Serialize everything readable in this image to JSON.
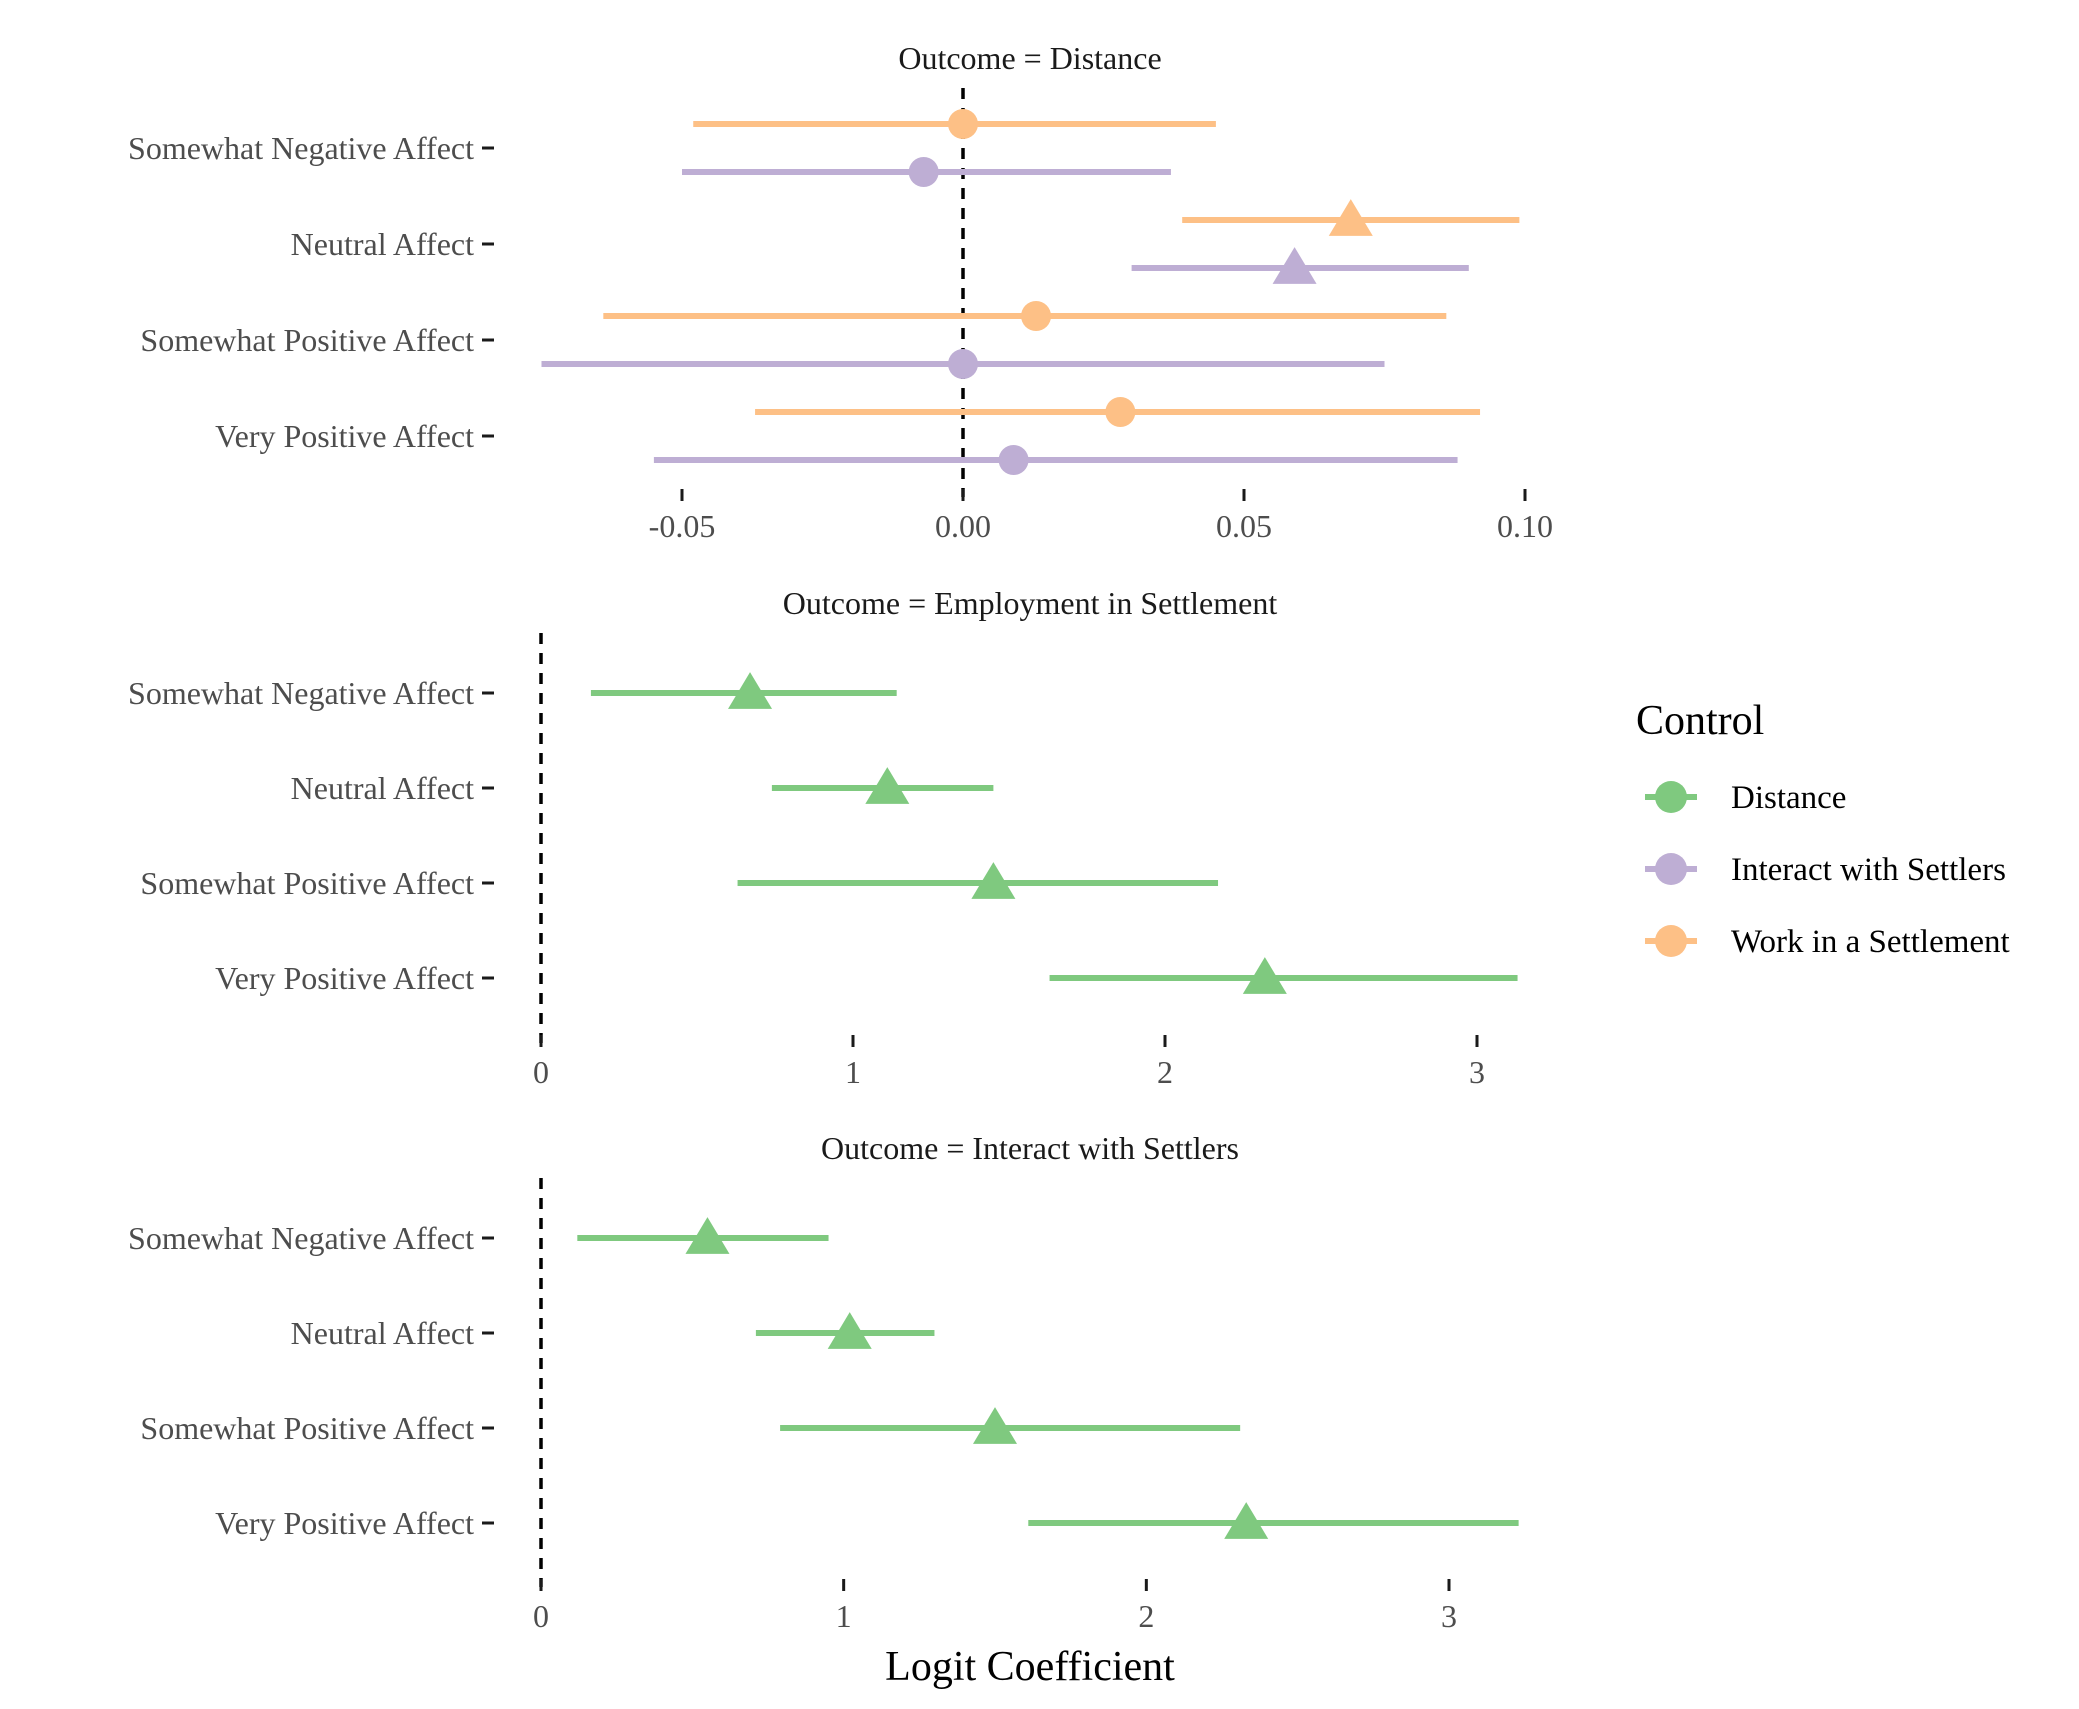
{
  "colors": {
    "Distance": "#7fc97f",
    "Interact with Settlers": "#beaed4",
    "Work in a Settlement": "#fdc086"
  },
  "chart_data": [
    {
      "type": "scatter",
      "subtype": "coefficient-plot",
      "title": "Outcome =  Distance",
      "xlabel": "",
      "ylabel": "",
      "xlim": [
        -0.075,
        0.1
      ],
      "x_ticks": [
        "-0.05",
        "0.00",
        "0.05",
        "0.10"
      ],
      "x_tick_values": [
        -0.05,
        0.0,
        0.05,
        0.1
      ],
      "reference_line": 0,
      "categories": [
        "Somewhat Negative Affect",
        "Neutral Affect",
        "Somewhat Positive Affect",
        "Very Positive Affect"
      ],
      "series": [
        {
          "name": "Work in a Settlement",
          "points": [
            {
              "category": "Somewhat Negative Affect",
              "estimate": 0.0,
              "low": -0.048,
              "high": 0.045,
              "shape": "circle"
            },
            {
              "category": "Neutral Affect",
              "estimate": 0.069,
              "low": 0.039,
              "high": 0.099,
              "shape": "triangle"
            },
            {
              "category": "Somewhat Positive Affect",
              "estimate": 0.013,
              "low": -0.064,
              "high": 0.086,
              "shape": "circle"
            },
            {
              "category": "Very Positive Affect",
              "estimate": 0.028,
              "low": -0.037,
              "high": 0.092,
              "shape": "circle"
            }
          ]
        },
        {
          "name": "Interact with Settlers",
          "points": [
            {
              "category": "Somewhat Negative Affect",
              "estimate": -0.007,
              "low": -0.05,
              "high": 0.037,
              "shape": "circle"
            },
            {
              "category": "Neutral Affect",
              "estimate": 0.059,
              "low": 0.03,
              "high": 0.09,
              "shape": "triangle"
            },
            {
              "category": "Somewhat Positive Affect",
              "estimate": 0.0,
              "low": -0.075,
              "high": 0.075,
              "shape": "circle"
            },
            {
              "category": "Very Positive Affect",
              "estimate": 0.009,
              "low": -0.055,
              "high": 0.088,
              "shape": "circle"
            }
          ]
        }
      ]
    },
    {
      "type": "scatter",
      "subtype": "coefficient-plot",
      "title": "Outcome =  Employment in Settlement",
      "xlabel": "",
      "ylabel": "",
      "xlim": [
        0,
        3.13
      ],
      "x_ticks": [
        "0",
        "1",
        "2",
        "3"
      ],
      "x_tick_values": [
        0,
        1,
        2,
        3
      ],
      "reference_line": 0,
      "categories": [
        "Somewhat Negative Affect",
        "Neutral Affect",
        "Somewhat Positive Affect",
        "Very Positive Affect"
      ],
      "series": [
        {
          "name": "Distance",
          "points": [
            {
              "category": "Somewhat Negative Affect",
              "estimate": 0.67,
              "low": 0.16,
              "high": 1.14,
              "shape": "triangle"
            },
            {
              "category": "Neutral Affect",
              "estimate": 1.11,
              "low": 0.74,
              "high": 1.45,
              "shape": "triangle"
            },
            {
              "category": "Somewhat Positive Affect",
              "estimate": 1.45,
              "low": 0.63,
              "high": 2.17,
              "shape": "triangle"
            },
            {
              "category": "Very Positive Affect",
              "estimate": 2.32,
              "low": 1.63,
              "high": 3.13,
              "shape": "triangle"
            }
          ]
        }
      ]
    },
    {
      "type": "scatter",
      "subtype": "coefficient-plot",
      "title": "Outcome =  Interact with Settlers",
      "xlabel": "Logit Coefficient",
      "ylabel": "",
      "xlim": [
        0,
        3.23
      ],
      "x_ticks": [
        "0",
        "1",
        "2",
        "3"
      ],
      "x_tick_values": [
        0,
        1,
        2,
        3
      ],
      "reference_line": 0,
      "categories": [
        "Somewhat Negative Affect",
        "Neutral Affect",
        "Somewhat Positive Affect",
        "Very Positive Affect"
      ],
      "series": [
        {
          "name": "Distance",
          "points": [
            {
              "category": "Somewhat Negative Affect",
              "estimate": 0.55,
              "low": 0.12,
              "high": 0.95,
              "shape": "triangle"
            },
            {
              "category": "Neutral Affect",
              "estimate": 1.02,
              "low": 0.71,
              "high": 1.3,
              "shape": "triangle"
            },
            {
              "category": "Somewhat Positive Affect",
              "estimate": 1.5,
              "low": 0.79,
              "high": 2.31,
              "shape": "triangle"
            },
            {
              "category": "Very Positive Affect",
              "estimate": 2.33,
              "low": 1.61,
              "high": 3.23,
              "shape": "triangle"
            }
          ]
        }
      ]
    }
  ],
  "legend": {
    "title": "Control",
    "position": "right",
    "items": [
      "Distance",
      "Interact with Settlers",
      "Work in a Settlement"
    ]
  }
}
